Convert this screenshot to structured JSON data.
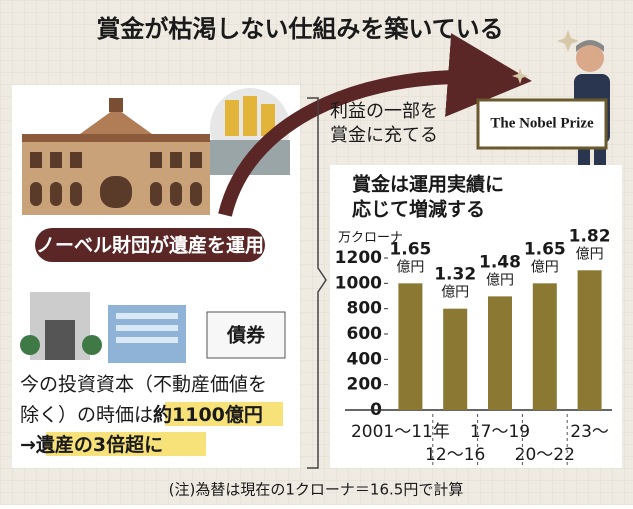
{
  "title": "賞金が枯渇しない仕組みを築いている",
  "arrow_caption": [
    "利益の一部を",
    "賞金に充てる"
  ],
  "sign": "The Nobel Prize",
  "left_panel": {
    "banner": "ノーベル財団が遺産を運用",
    "bond_label": "債券",
    "line1": "今の投資資本（不動産価値を",
    "line2a": "除く）の時価は",
    "line2b": "約1100億円",
    "line3a": "→",
    "line3b": "遺産の3倍超に"
  },
  "note": "(注)為替は現在の1クローナ＝16.5円で計算",
  "chart_data": {
    "type": "bar",
    "title": [
      "賞金は運用実績に",
      "応じて増減する"
    ],
    "y_label": "万クローナ",
    "categories": [
      "2001～11年",
      "12～16",
      "17～19",
      "20～22",
      "23～"
    ],
    "values": [
      1000,
      800,
      897,
      1000,
      1103
    ],
    "value_labels": [
      "1.65億円",
      "1.32億円",
      "1.48億円",
      "1.65億円",
      "1.82億円"
    ],
    "ylim": [
      0,
      1200
    ],
    "yticks": [
      0,
      200,
      400,
      600,
      800,
      1000,
      1200
    ],
    "color": "#8a7833"
  }
}
